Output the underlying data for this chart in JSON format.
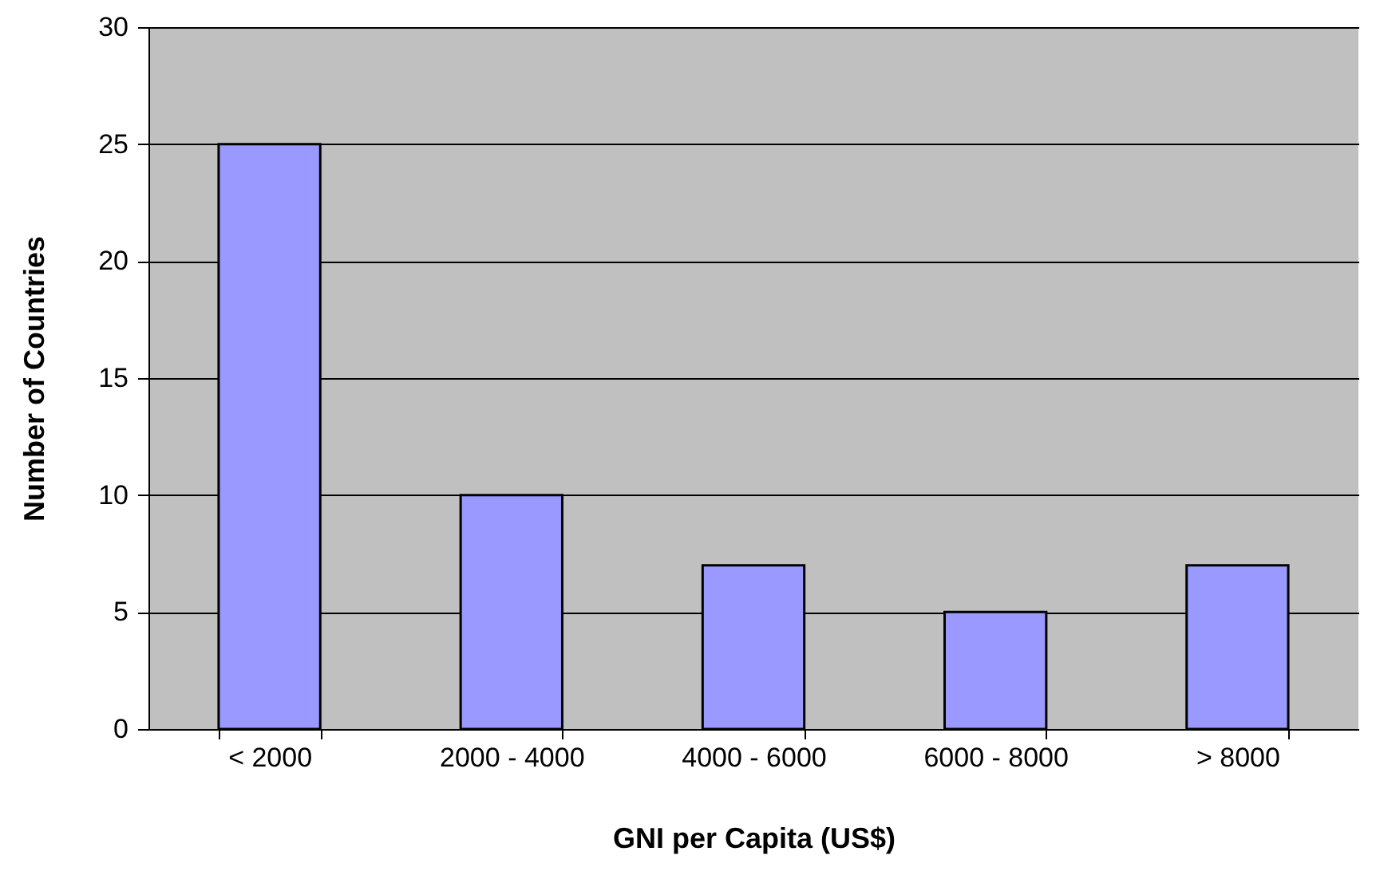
{
  "chart_data": {
    "type": "bar",
    "xlabel": "GNI per Capita (US$)",
    "ylabel": "Number of Countries",
    "categories": [
      "< 2000",
      "2000 - 4000",
      "4000 - 6000",
      "6000 - 8000",
      "> 8000"
    ],
    "values": [
      25,
      10,
      7,
      5,
      7
    ],
    "color": "#9999ff",
    "ylim": [
      0,
      30
    ],
    "yticks": [
      0,
      5,
      10,
      15,
      20,
      25,
      30
    ],
    "grid": "y"
  }
}
